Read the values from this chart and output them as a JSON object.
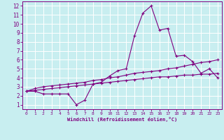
{
  "xlabel": "Windchill (Refroidissement éolien,°C)",
  "background_color": "#c8eef0",
  "grid_color": "#ffffff",
  "line_color": "#800080",
  "spine_color": "#800080",
  "xlim": [
    -0.5,
    23.5
  ],
  "ylim": [
    0.5,
    12.5
  ],
  "xticks": [
    0,
    1,
    2,
    3,
    4,
    5,
    6,
    7,
    8,
    9,
    10,
    11,
    12,
    13,
    14,
    15,
    16,
    17,
    18,
    19,
    20,
    21,
    22,
    23
  ],
  "yticks": [
    1,
    2,
    3,
    4,
    5,
    6,
    7,
    8,
    9,
    10,
    11,
    12
  ],
  "series": [
    [
      2.5,
      2.5,
      2.2,
      2.2,
      2.2,
      2.2,
      1.0,
      1.5,
      3.3,
      3.5,
      4.2,
      4.8,
      5.0,
      8.7,
      11.2,
      12.0,
      9.3,
      9.5,
      6.4,
      6.5,
      5.8,
      4.5,
      5.0,
      4.0
    ],
    [
      2.5,
      2.8,
      3.0,
      3.1,
      3.2,
      3.3,
      3.4,
      3.5,
      3.7,
      3.8,
      4.0,
      4.1,
      4.3,
      4.5,
      4.6,
      4.7,
      4.8,
      5.0,
      5.1,
      5.3,
      5.5,
      5.7,
      5.8,
      6.0
    ],
    [
      2.5,
      2.6,
      2.7,
      2.8,
      2.9,
      3.0,
      3.1,
      3.2,
      3.3,
      3.4,
      3.5,
      3.6,
      3.7,
      3.8,
      3.9,
      4.0,
      4.1,
      4.1,
      4.2,
      4.3,
      4.3,
      4.4,
      4.4,
      4.5
    ]
  ]
}
